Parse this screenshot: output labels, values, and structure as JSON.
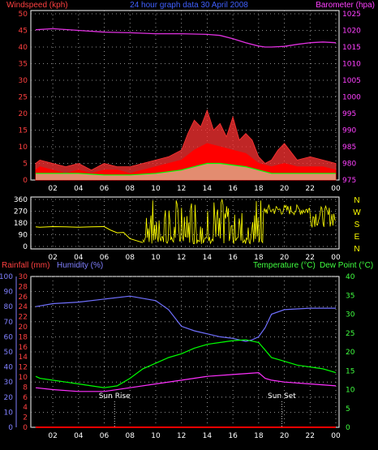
{
  "header": {
    "windspeed_label": "Windspeed (kph)",
    "title": "24 hour graph data  30 April 2008",
    "barometer_label": "Barometer (hpa)"
  },
  "lower_header": {
    "rainfall_label": "Rainfall (mm)",
    "humidity_label": "Humidity (%)",
    "temperature_label": "Temperature (°C)",
    "dewpoint_label": "Dew Point (°C)"
  },
  "annotations": {
    "sunrise": "Sun Rise",
    "sunset": "Sun Set"
  },
  "colors": {
    "windspeed": "#ff0000",
    "gust": "#ff3333",
    "average_wind": "#00ff00",
    "wind_light": "#ccffcc",
    "barometer": "#e030e0",
    "direction": "#ffff00",
    "humidity": "#7070ff",
    "temperature": "#00ff00",
    "dewpoint": "#ff30ff",
    "rainfall": "#ff0000",
    "grid": "#bbbbbb"
  },
  "chart_data": [
    {
      "type": "area",
      "name": "wind-barometer",
      "title": "24 hour graph data  30 April 2008",
      "x_ticks": [
        "02",
        "04",
        "06",
        "08",
        "10",
        "12",
        "14",
        "16",
        "18",
        "20",
        "22",
        "00"
      ],
      "ylabel_left": "Windspeed (kph)",
      "yticks_left": [
        0,
        5,
        10,
        15,
        20,
        25,
        30,
        35,
        40,
        45,
        50
      ],
      "ylim_left": [
        0,
        50
      ],
      "ylabel_right": "Barometer (hpa)",
      "yticks_right": [
        975,
        980,
        985,
        990,
        995,
        1000,
        1005,
        1010,
        1015,
        1020,
        1025
      ],
      "ylim_right": [
        975,
        1025
      ],
      "x_range": [
        0.67,
        24
      ],
      "grid": true,
      "series": [
        {
          "key": "barometer",
          "axis": "right",
          "x": [
            0.67,
            2,
            4,
            6,
            8,
            10,
            12,
            14,
            15,
            16,
            17,
            18,
            18.5,
            19,
            20,
            21,
            22,
            23,
            24
          ],
          "values": [
            1020.2,
            1020.5,
            1020,
            1019.5,
            1019.3,
            1019,
            1019,
            1018.8,
            1018.5,
            1017.5,
            1016.3,
            1015.3,
            1015,
            1015,
            1015.2,
            1015.8,
            1016.3,
            1016.5,
            1016.3
          ]
        },
        {
          "key": "gust",
          "axis": "left",
          "x": [
            0.67,
            1,
            2,
            3,
            4,
            5,
            6,
            7,
            8,
            9,
            10,
            11,
            12,
            12.5,
            13,
            13.5,
            14,
            14.5,
            15,
            15.5,
            16,
            16.5,
            17,
            17.5,
            18,
            18.5,
            19,
            19.5,
            20,
            21,
            22,
            23,
            24
          ],
          "values": [
            5,
            6,
            5,
            4,
            5,
            3,
            5,
            4,
            4,
            5,
            6,
            7,
            9,
            14,
            18,
            16,
            21,
            15,
            17,
            13,
            19,
            12,
            14,
            12,
            7,
            5,
            6,
            9,
            11,
            6,
            7,
            6,
            5
          ]
        },
        {
          "key": "windspeed",
          "axis": "left",
          "x": [
            0.67,
            1,
            2,
            3,
            4,
            5,
            6,
            7,
            8,
            9,
            10,
            11,
            12,
            13,
            14,
            15,
            16,
            17,
            18,
            19,
            20,
            21,
            22,
            23,
            24
          ],
          "values": [
            3,
            4,
            3,
            2,
            3,
            2,
            3,
            3,
            2,
            3,
            4,
            5,
            6,
            9,
            11,
            10,
            9,
            8,
            5,
            4,
            5,
            4,
            4,
            4,
            3
          ]
        },
        {
          "key": "average_wind",
          "axis": "left",
          "x": [
            0.67,
            2,
            4,
            6,
            8,
            10,
            12,
            13,
            14,
            15,
            16,
            17,
            18,
            19,
            20,
            22,
            24
          ],
          "values": [
            2,
            2,
            2,
            1.5,
            1.5,
            2,
            3,
            4,
            5,
            5,
            4.5,
            4,
            3,
            2,
            2,
            2,
            2
          ]
        }
      ]
    },
    {
      "type": "line",
      "name": "wind-direction",
      "x_ticks": [
        "02",
        "04",
        "06",
        "08",
        "10",
        "12",
        "14",
        "16",
        "18",
        "20",
        "22",
        "00"
      ],
      "yticks_left": [
        0,
        90,
        180,
        270,
        360
      ],
      "ylim_left": [
        0,
        360
      ],
      "yticks_right": [
        "N",
        "W",
        "S",
        "E",
        "N"
      ],
      "x_range": [
        0.67,
        24
      ],
      "grid": true,
      "series": [
        {
          "key": "direction",
          "x": [
            0.67,
            1,
            2,
            3,
            4,
            5,
            6,
            6.5,
            7,
            7.5,
            8,
            8.5,
            9
          ],
          "values": [
            150,
            148,
            152,
            150,
            148,
            150,
            152,
            125,
            105,
            108,
            60,
            45,
            30
          ]
        }
      ]
    },
    {
      "type": "line",
      "name": "temperature-humidity",
      "x_ticks": [
        "02",
        "04",
        "06",
        "08",
        "10",
        "12",
        "14",
        "16",
        "18",
        "20",
        "22",
        "00"
      ],
      "humidity_ticks": [
        0,
        10,
        20,
        30,
        40,
        50,
        60,
        70,
        80,
        90,
        100
      ],
      "ylim_humidity": [
        0,
        100
      ],
      "rainfall_ticks": [
        0,
        2,
        4,
        6,
        8,
        10,
        12,
        14,
        16,
        18,
        20,
        22,
        24,
        26,
        28,
        30
      ],
      "ylim_rainfall": [
        0,
        30
      ],
      "temperature_ticks": [
        0,
        5,
        10,
        15,
        20,
        25,
        30,
        35,
        40
      ],
      "ylim_temperature": [
        0,
        40
      ],
      "x_range": [
        0.67,
        24
      ],
      "grid": true,
      "series": [
        {
          "key": "humidity",
          "scale": "humidity",
          "x": [
            0.67,
            2,
            4,
            6,
            8,
            10,
            11,
            12,
            13,
            14,
            15,
            16,
            17,
            17.5,
            18,
            18.5,
            19,
            20,
            22,
            24
          ],
          "values": [
            80,
            82,
            83,
            85,
            87,
            84,
            78,
            67,
            64,
            62,
            60,
            59,
            57,
            58,
            60,
            66,
            75,
            78,
            79,
            79
          ]
        },
        {
          "key": "temperature",
          "scale": "temperature",
          "x": [
            0.67,
            1,
            2,
            3,
            4,
            5,
            6,
            7,
            8,
            9,
            10,
            11,
            12,
            13,
            14,
            15,
            16,
            17,
            18,
            18.5,
            19,
            20,
            21,
            22,
            23,
            24
          ],
          "values": [
            13.5,
            13,
            12.5,
            12,
            11.5,
            11,
            10.5,
            11,
            13,
            15.5,
            17,
            18.5,
            19.5,
            21,
            22,
            22.5,
            23,
            23.2,
            22.5,
            20.5,
            18.5,
            17.5,
            16.5,
            16,
            15.5,
            14.5
          ]
        },
        {
          "key": "dewpoint",
          "scale": "temperature",
          "x": [
            0.67,
            2,
            4,
            6,
            8,
            10,
            12,
            14,
            16,
            18,
            18.5,
            19,
            20,
            22,
            24
          ],
          "values": [
            10.5,
            10,
            9.5,
            9.5,
            10.5,
            11.5,
            12.5,
            13.5,
            14,
            14.5,
            13,
            12.5,
            12,
            11.5,
            11
          ]
        },
        {
          "key": "rainfall",
          "scale": "rainfall",
          "x": [
            0.67,
            24
          ],
          "values": [
            0,
            0
          ]
        }
      ],
      "markers": [
        {
          "key": "sunrise",
          "label": "Sun Rise",
          "x": 6.8
        },
        {
          "key": "sunset",
          "label": "Sun Set",
          "x": 19.8
        }
      ]
    }
  ]
}
